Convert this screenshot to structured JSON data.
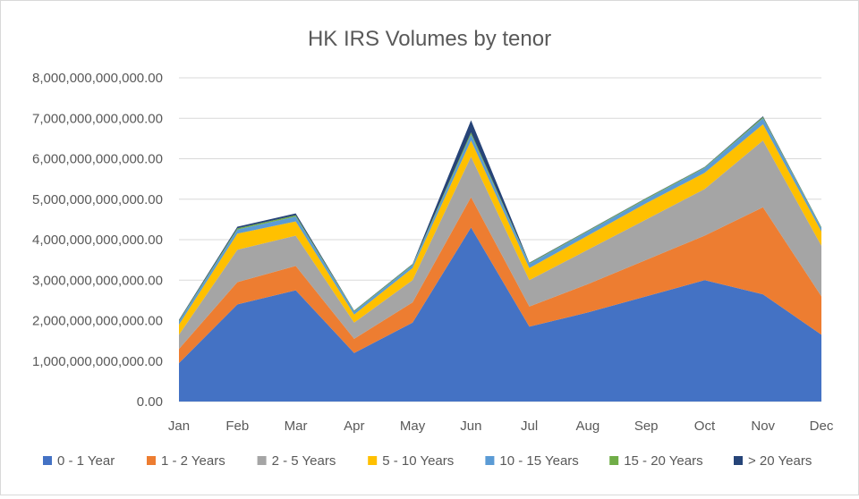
{
  "chart_data": {
    "type": "area",
    "stacked": true,
    "title": "HK IRS Volumes by tenor",
    "xlabel": "",
    "ylabel": "",
    "categories": [
      "Jan",
      "Feb",
      "Mar",
      "Apr",
      "May",
      "Jun",
      "Jul",
      "Aug",
      "Sep",
      "Oct",
      "Nov",
      "Dec"
    ],
    "y_ticks": [
      "0.00",
      "1,000,000,000,000.00",
      "2,000,000,000,000.00",
      "3,000,000,000,000.00",
      "4,000,000,000,000.00",
      "5,000,000,000,000.00",
      "6,000,000,000,000.00",
      "7,000,000,000,000.00",
      "8,000,000,000,000.00"
    ],
    "ylim": [
      0,
      8000000000000
    ],
    "grid": true,
    "legend_position": "bottom",
    "series": [
      {
        "name": "0 - 1 Year",
        "color": "#4472C4",
        "values": [
          950000000000,
          2400000000000,
          2750000000000,
          1200000000000,
          1950000000000,
          4300000000000,
          1850000000000,
          2200000000000,
          2600000000000,
          3000000000000,
          2650000000000,
          1650000000000
        ]
      },
      {
        "name": "1 - 2 Years",
        "color": "#ED7D31",
        "values": [
          350000000000,
          550000000000,
          600000000000,
          350000000000,
          500000000000,
          750000000000,
          500000000000,
          700000000000,
          900000000000,
          1100000000000,
          2150000000000,
          950000000000
        ]
      },
      {
        "name": "2 - 5 Years",
        "color": "#A5A5A5",
        "values": [
          350000000000,
          800000000000,
          750000000000,
          400000000000,
          550000000000,
          1000000000000,
          650000000000,
          850000000000,
          1000000000000,
          1150000000000,
          1650000000000,
          1250000000000
        ]
      },
      {
        "name": "5 - 10 Years",
        "color": "#FFC000",
        "values": [
          250000000000,
          400000000000,
          350000000000,
          200000000000,
          300000000000,
          400000000000,
          300000000000,
          350000000000,
          400000000000,
          400000000000,
          400000000000,
          350000000000
        ]
      },
      {
        "name": "10 - 15 Years",
        "color": "#5B9BD5",
        "values": [
          80000000000,
          100000000000,
          120000000000,
          70000000000,
          70000000000,
          150000000000,
          100000000000,
          100000000000,
          100000000000,
          120000000000,
          150000000000,
          80000000000
        ]
      },
      {
        "name": "15 - 20 Years",
        "color": "#70AD47",
        "values": [
          20000000000,
          30000000000,
          30000000000,
          20000000000,
          20000000000,
          50000000000,
          20000000000,
          20000000000,
          20000000000,
          20000000000,
          30000000000,
          20000000000
        ]
      },
      {
        "name": "> 20 Years",
        "color": "#264478",
        "values": [
          20000000000,
          40000000000,
          50000000000,
          10000000000,
          10000000000,
          300000000000,
          10000000000,
          10000000000,
          10000000000,
          10000000000,
          20000000000,
          10000000000
        ]
      }
    ]
  }
}
